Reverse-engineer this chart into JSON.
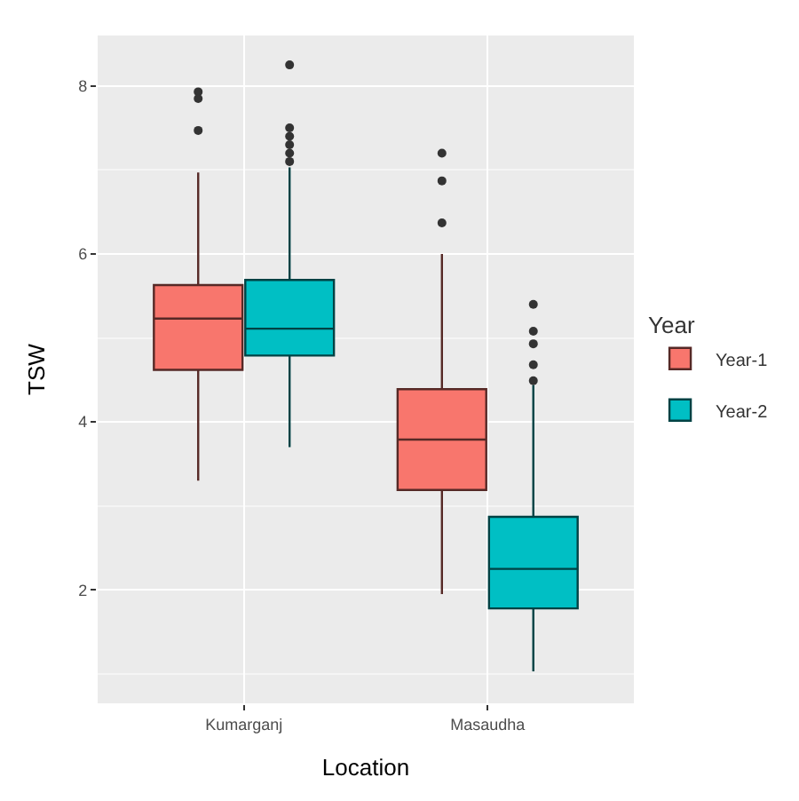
{
  "chart_data": {
    "type": "box",
    "categories": [
      "Kumarganj",
      "Masaudha"
    ],
    "xlabel": "Location",
    "ylabel": "TSW",
    "legend_title": "Year",
    "ylim": [
      0.65,
      8.6
    ],
    "yticks": [
      2,
      4,
      6,
      8
    ],
    "grid": true,
    "legend": "right",
    "series": [
      {
        "name": "Year-1",
        "color": "#f8766d",
        "boxes": [
          {
            "low": 3.3,
            "q1": 4.62,
            "median": 5.23,
            "q3": 5.63,
            "high": 6.97,
            "outliers": [
              7.93,
              7.85,
              7.47
            ]
          },
          {
            "low": 1.95,
            "q1": 3.19,
            "median": 3.79,
            "q3": 4.39,
            "high": 6.0,
            "outliers": [
              7.2,
              6.87,
              6.37
            ]
          }
        ]
      },
      {
        "name": "Year-2",
        "color": "#00bfc4",
        "boxes": [
          {
            "low": 3.7,
            "q1": 4.79,
            "median": 5.11,
            "q3": 5.69,
            "high": 7.03,
            "outliers": [
              8.25,
              7.5,
              7.4,
              7.3,
              7.2,
              7.1
            ]
          },
          {
            "low": 1.03,
            "q1": 1.78,
            "median": 2.25,
            "q3": 2.87,
            "high": 4.44,
            "outliers": [
              5.4,
              5.08,
              4.93,
              4.68,
              4.49
            ]
          }
        ]
      }
    ]
  }
}
